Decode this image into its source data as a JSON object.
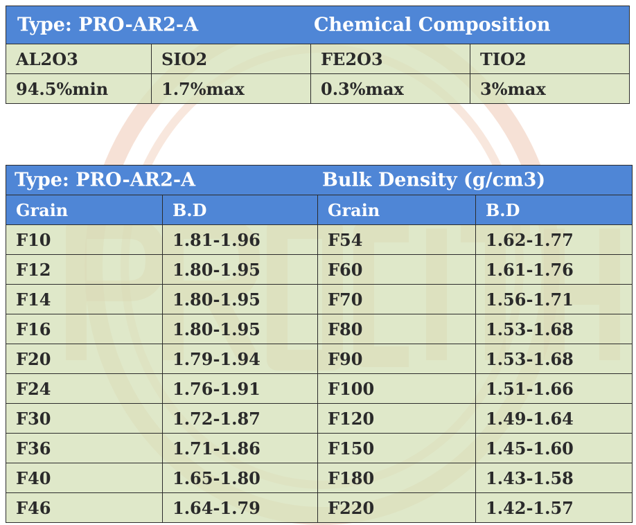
{
  "chemical": {
    "type_label": "Type: PRO-AR2-A",
    "title": "Chemical Composition",
    "headers": [
      "AL2O3",
      "SIO2",
      "FE2O3",
      "TIO2"
    ],
    "values": [
      "94.5%min",
      "1.7%max",
      "0.3%max",
      "3%max"
    ]
  },
  "bulk": {
    "type_label": "Type: PRO-AR2-A",
    "title": "Bulk Density (g/cm3)",
    "headers": [
      "Grain",
      "B.D",
      "Grain",
      "B.D"
    ],
    "rows": [
      [
        "F10",
        "1.81-1.96",
        "F54",
        "1.62-1.77"
      ],
      [
        "F12",
        "1.80-1.95",
        "F60",
        "1.61-1.76"
      ],
      [
        "F14",
        "1.80-1.95",
        "F70",
        "1.56-1.71"
      ],
      [
        "F16",
        "1.80-1.95",
        "F80",
        "1.53-1.68"
      ],
      [
        "F20",
        "1.79-1.94",
        "F90",
        "1.53-1.68"
      ],
      [
        "F24",
        "1.76-1.91",
        "F100",
        "1.51-1.66"
      ],
      [
        "F30",
        "1.72-1.87",
        "F120",
        "1.49-1.64"
      ],
      [
        "F36",
        "1.71-1.86",
        "F150",
        "1.45-1.60"
      ],
      [
        "F40",
        "1.65-1.80",
        "F180",
        "1.43-1.58"
      ],
      [
        "F46",
        "1.64-1.79",
        "F220",
        "1.42-1.57"
      ]
    ]
  },
  "watermark": {
    "text": "PROCITH",
    "color": "#e7b49c"
  }
}
